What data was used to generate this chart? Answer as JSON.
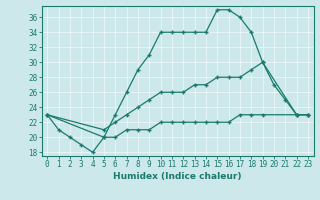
{
  "xlabel": "Humidex (Indice chaleur)",
  "bg_color": "#cce8ea",
  "grid_color": "#b8d8da",
  "line_color": "#1a7a6e",
  "xlim": [
    -0.5,
    23.5
  ],
  "ylim": [
    17.5,
    37.5
  ],
  "xticks": [
    0,
    1,
    2,
    3,
    4,
    5,
    6,
    7,
    8,
    9,
    10,
    11,
    12,
    13,
    14,
    15,
    16,
    17,
    18,
    19,
    20,
    21,
    22,
    23
  ],
  "yticks": [
    18,
    20,
    22,
    24,
    26,
    28,
    30,
    32,
    34,
    36
  ],
  "series": [
    {
      "x": [
        0,
        1,
        2,
        3,
        4,
        5,
        6,
        7,
        8,
        9,
        10,
        11,
        12,
        13,
        14,
        15,
        16,
        17,
        18,
        19,
        22,
        23
      ],
      "y": [
        23,
        21,
        20,
        19,
        18,
        20,
        23,
        26,
        29,
        31,
        34,
        34,
        34,
        34,
        34,
        37,
        37,
        36,
        34,
        30,
        23,
        23
      ]
    },
    {
      "x": [
        0,
        5,
        6,
        7,
        8,
        9,
        10,
        11,
        12,
        13,
        14,
        15,
        16,
        17,
        18,
        19,
        20,
        21,
        22,
        23
      ],
      "y": [
        23,
        21,
        22,
        23,
        24,
        25,
        26,
        26,
        26,
        27,
        27,
        28,
        28,
        28,
        29,
        30,
        27,
        25,
        23,
        23
      ]
    },
    {
      "x": [
        0,
        5,
        6,
        7,
        8,
        9,
        10,
        11,
        12,
        13,
        14,
        15,
        16,
        17,
        18,
        19,
        22,
        23
      ],
      "y": [
        23,
        20,
        20,
        21,
        21,
        21,
        22,
        22,
        22,
        22,
        22,
        22,
        22,
        23,
        23,
        23,
        23,
        23
      ]
    }
  ]
}
